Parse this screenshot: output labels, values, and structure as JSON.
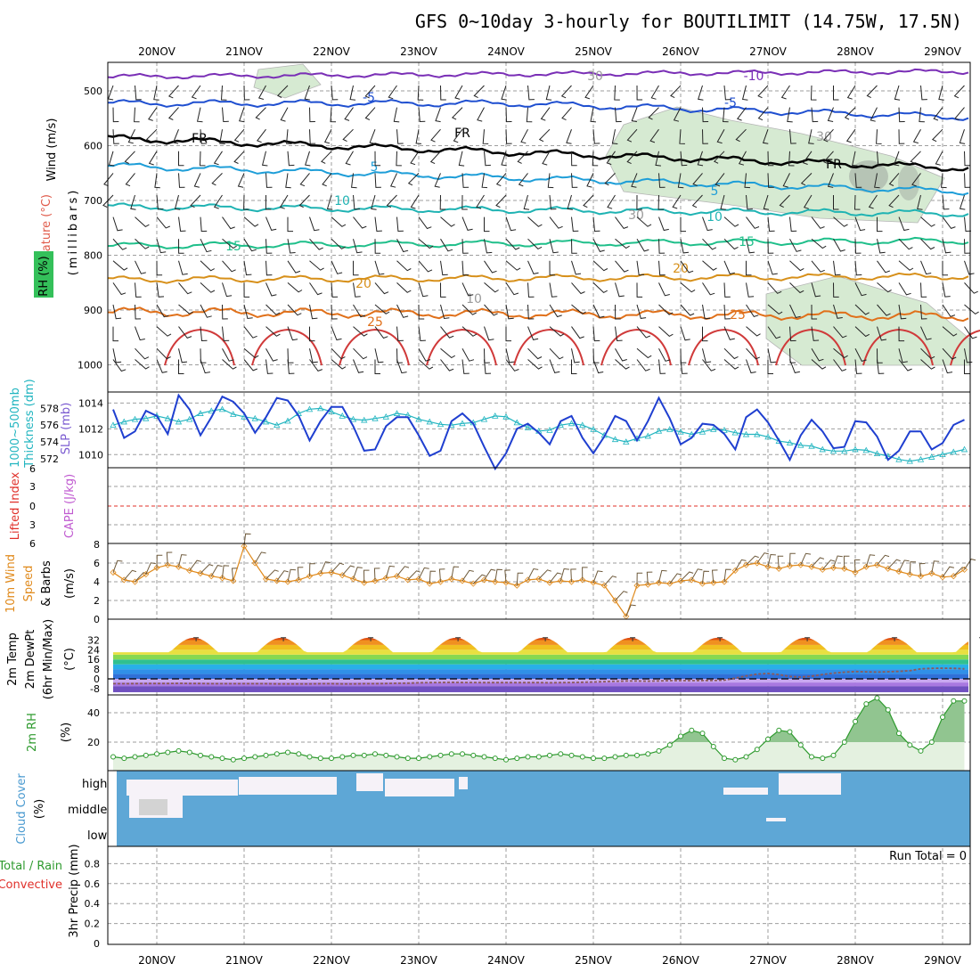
{
  "title": "GFS 0~10day 3-hourly for BOUTILIMIT (14.75W, 17.5N)",
  "dates": [
    "20NOV",
    "21NOV",
    "22NOV",
    "23NOV",
    "24NOV",
    "25NOV",
    "26NOV",
    "27NOV",
    "28NOV",
    "29NOV"
  ],
  "colors": {
    "frame": "#000000",
    "grid": "#9e9e9e",
    "rh_fill": "#d6ead2",
    "slp": "#1f3fd0",
    "thickness": "#22b5c0",
    "lifted": "#e0302a",
    "wind10": "#e08a1c",
    "barb": "#6e5a3c",
    "dewpt": "#8c5a5a",
    "rh2m": "#2e9a2e",
    "cloud": "#5ea7d6",
    "cloud_clear": "#f6f2f8",
    "cloud_mid": "#d3d3d3"
  },
  "panels": {
    "upper": {
      "left_labels": [
        "Wind (m/s)",
        "Temperature (°C)",
        "RH (%)"
      ],
      "axis_label": "(millibars)",
      "pressure_ticks": [
        "500",
        "600",
        "700",
        "800",
        "900",
        "1000"
      ],
      "contour_labels": [
        "-10",
        "-5",
        "-5",
        "FR",
        "FR",
        "FR",
        "5",
        "5",
        "10",
        "10",
        "15",
        "15",
        "20",
        "20",
        "25",
        "25",
        "30",
        "30",
        "30",
        "10"
      ]
    },
    "slp": {
      "left_labels": [
        "1000~500mb",
        "Thickness (dm)",
        "SLP (mb)"
      ],
      "thickness_ticks": [
        "578",
        "576",
        "574",
        "572"
      ],
      "slp_ticks": [
        "1014",
        "1012",
        "1010"
      ]
    },
    "cape": {
      "left_labels": [
        "Lifted Index",
        "CAPE (J/kg)"
      ],
      "ticks": [
        "6",
        "3",
        "0",
        "3",
        "6"
      ]
    },
    "wind": {
      "left_labels": [
        "10m Wind",
        "Speed",
        "& Barbs",
        "(m/s)"
      ],
      "ticks": [
        "8",
        "6",
        "4",
        "2",
        "0"
      ]
    },
    "temp": {
      "left_labels": [
        "2m Temp",
        "2m DewPt",
        "(6hr Min/Max)",
        "(°C)"
      ],
      "ticks": [
        "32",
        "24",
        "16",
        "8",
        "0",
        "-8"
      ]
    },
    "rh": {
      "left_labels": [
        "2m RH",
        "(%)"
      ],
      "ticks": [
        "40",
        "20"
      ]
    },
    "cloud": {
      "left_labels": [
        "Cloud Cover",
        "(%)"
      ],
      "levels": [
        "high",
        "middle",
        "low"
      ]
    },
    "precip": {
      "left_labels": [
        "Total / Rain",
        "Convective",
        "3hr Precip (mm)"
      ],
      "ticks": [
        "0.8",
        "0.6",
        "0.4",
        "0.2",
        "0"
      ],
      "run_total": "Run Total = 0"
    }
  },
  "chart_data": [
    {
      "type": "line",
      "title": "3hr Precip (mm)",
      "ylabel": "3hr Precip (mm)",
      "ylim": [
        0,
        0.9
      ],
      "series": [
        {
          "name": "Total / Rain",
          "values": [
            0,
            0,
            0,
            0,
            0,
            0,
            0,
            0,
            0,
            0,
            0,
            0,
            0,
            0,
            0,
            0,
            0,
            0,
            0,
            0,
            0,
            0,
            0,
            0,
            0,
            0,
            0,
            0,
            0,
            0,
            0,
            0,
            0,
            0,
            0,
            0,
            0,
            0,
            0,
            0,
            0,
            0,
            0,
            0,
            0,
            0,
            0,
            0,
            0,
            0,
            0,
            0,
            0,
            0,
            0,
            0,
            0,
            0,
            0,
            0,
            0,
            0,
            0,
            0,
            0,
            0,
            0,
            0,
            0,
            0,
            0,
            0,
            0,
            0,
            0,
            0,
            0,
            0,
            0,
            0,
            0
          ]
        }
      ]
    },
    {
      "type": "line",
      "title": "SLP (mb)",
      "ylabel": "SLP (mb)",
      "ylim": [
        1009,
        1015
      ],
      "series": [
        {
          "name": "SLP",
          "values": [
            1013.5,
            1011.3,
            1011.8,
            1013.4,
            1013.0,
            1011.6,
            1014.6,
            1013.5,
            1011.5,
            1012.9,
            1014.5,
            1014.1,
            1013.2,
            1011.7,
            1012.9,
            1014.4,
            1014.2,
            1013.0,
            1011.1,
            1012.6,
            1013.7,
            1013.7,
            1012.2,
            1010.3,
            1010.4,
            1012.2,
            1012.9,
            1012.9,
            1011.5,
            1009.9,
            1010.3,
            1012.6,
            1013.2,
            1012.4,
            1010.6,
            1008.9,
            1010.1,
            1012.0,
            1012.4,
            1011.7,
            1010.8,
            1012.6,
            1013.0,
            1011.3,
            1010.1,
            1011.4,
            1013.0,
            1012.6,
            1011.1,
            1012.6,
            1014.4,
            1012.8,
            1010.8,
            1011.3,
            1012.4,
            1012.3,
            1011.6,
            1010.4,
            1012.9,
            1013.5,
            1012.5,
            1011.1,
            1009.6,
            1011.5,
            1012.7,
            1011.8,
            1010.5,
            1010.6,
            1012.6,
            1012.5,
            1011.4,
            1009.6,
            1010.3,
            1011.8,
            1011.8,
            1010.4,
            1010.9,
            1012.3,
            1012.7,
            1012.9,
            1013.3
          ]
        }
      ]
    },
    {
      "type": "line",
      "title": "1000~500mb Thickness (dm)",
      "ylabel": "Thickness (dm)",
      "ylim": [
        571,
        579
      ],
      "series": [
        {
          "name": "Thickness",
          "values": [
            576.0,
            576.4,
            576.7,
            576.8,
            577.1,
            576.8,
            576.4,
            576.7,
            577.4,
            577.7,
            577.9,
            577.3,
            577.0,
            576.8,
            576.4,
            576.0,
            576.5,
            577.4,
            577.9,
            578.0,
            577.6,
            577.1,
            576.7,
            576.6,
            576.8,
            577.0,
            577.4,
            577.2,
            576.7,
            576.4,
            576.1,
            576.0,
            576.2,
            576.3,
            576.7,
            577.1,
            577.0,
            576.3,
            575.7,
            575.3,
            575.4,
            576.0,
            576.2,
            576.0,
            575.5,
            574.8,
            574.3,
            574.0,
            574.4,
            574.7,
            575.3,
            575.5,
            575.2,
            574.9,
            575.2,
            575.5,
            575.4,
            575.1,
            574.9,
            574.9,
            574.6,
            574.1,
            573.9,
            573.6,
            573.5,
            573.1,
            572.9,
            572.9,
            573.1,
            573.0,
            572.6,
            572.3,
            571.9,
            571.7,
            571.9,
            572.2,
            572.5,
            572.8,
            573.1,
            572.7,
            572.3
          ]
        }
      ]
    },
    {
      "type": "line",
      "title": "10m Wind Speed (m/s)",
      "ylabel": "(m/s)",
      "ylim": [
        0,
        8
      ],
      "series": [
        {
          "name": "10m Wind Speed",
          "values": [
            5.0,
            4.2,
            4.0,
            4.8,
            5.5,
            5.8,
            5.6,
            5.2,
            4.9,
            4.6,
            4.4,
            4.1,
            7.8,
            6.0,
            4.3,
            4.1,
            4.0,
            4.2,
            4.6,
            4.9,
            5.0,
            4.7,
            4.3,
            3.9,
            4.1,
            4.4,
            4.6,
            4.2,
            4.3,
            3.8,
            4.0,
            4.3,
            4.1,
            3.8,
            4.2,
            4.0,
            3.9,
            3.6,
            4.2,
            4.3,
            3.9,
            4.1,
            4.0,
            4.2,
            3.9,
            3.6,
            2.0,
            0.3,
            3.6,
            3.7,
            3.9,
            3.8,
            4.1,
            4.2,
            3.8,
            3.9,
            4.0,
            5.2,
            5.8,
            6.0,
            5.6,
            5.4,
            5.7,
            5.8,
            5.6,
            5.3,
            5.5,
            5.4,
            5.0,
            5.6,
            5.8,
            5.4,
            5.1,
            4.8,
            4.6,
            4.9,
            4.5,
            4.6,
            5.3,
            5.6,
            5.4
          ]
        }
      ]
    },
    {
      "type": "line",
      "title": "2m DewPt (°C)",
      "ylabel": "(°C)",
      "ylim": [
        -11,
        36
      ],
      "series": [
        {
          "name": "2m DewPt",
          "values": [
            -4.0,
            -4.0,
            -3.9,
            -3.8,
            -3.8,
            -3.8,
            -3.7,
            -3.8,
            -3.8,
            -4.0,
            -4.0,
            -4.0,
            -4.0,
            -4.0,
            -4.0,
            -4.1,
            -4.1,
            -4.1,
            -4.1,
            -4.0,
            -4.0,
            -4.1,
            -4.1,
            -4.0,
            -4.0,
            -3.8,
            -3.6,
            -3.5,
            -3.2,
            -3.1,
            -3.0,
            -2.9,
            -3.0,
            -3.0,
            -3.1,
            -3.1,
            -3.1,
            -3.1,
            -3.1,
            -3.1,
            -3.2,
            -3.1,
            -3.0,
            -2.8,
            -2.6,
            -2.3,
            -2.0,
            -1.8,
            -1.8,
            -1.9,
            -1.7,
            -1.5,
            -1.5,
            -1.5,
            -1.4,
            -1.3,
            -1.1,
            0.6,
            2.4,
            4.0,
            4.5,
            3.5,
            2.0,
            1.5,
            2.2,
            3.6,
            4.8,
            5.5,
            6.0,
            5.8,
            5.6,
            5.9,
            6.2,
            6.8,
            8.3,
            8.7,
            8.8,
            8.7,
            8.3,
            7.9,
            7.5
          ]
        }
      ]
    },
    {
      "type": "area",
      "title": "2m RH (%)",
      "ylabel": "(%)",
      "ylim": [
        0,
        50
      ],
      "series": [
        {
          "name": "2m RH",
          "values": [
            10,
            9,
            10,
            11,
            12,
            13,
            14,
            13,
            11,
            10,
            9,
            8,
            9,
            10,
            11,
            12,
            13,
            12,
            10,
            9,
            9,
            10,
            11,
            11,
            12,
            11,
            10,
            9,
            9,
            10,
            11,
            12,
            12,
            11,
            10,
            9,
            8,
            9,
            10,
            10,
            11,
            12,
            11,
            10,
            9,
            9,
            10,
            11,
            11,
            12,
            14,
            18,
            24,
            28,
            26,
            17,
            9,
            8,
            10,
            15,
            22,
            28,
            27,
            18,
            10,
            9,
            11,
            20,
            34,
            46,
            50,
            42,
            26,
            18,
            14,
            20,
            37,
            48,
            48,
            45,
            35
          ]
        }
      ]
    }
  ]
}
